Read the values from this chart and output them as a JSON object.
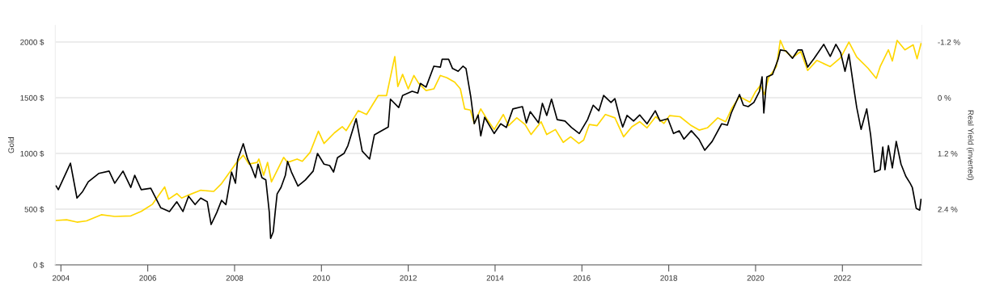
{
  "chart_data": {
    "type": "line",
    "ylabel": "Gold",
    "y2label": "Real Yield (inverted)",
    "xlim": [
      2003.87,
      2023.83
    ],
    "xticks": [
      2004,
      2006,
      2008,
      2010,
      2012,
      2014,
      2016,
      2018,
      2020,
      2022
    ],
    "ylim": [
      0,
      2150
    ],
    "yticks": [
      {
        "value": 0,
        "label": "0 $"
      },
      {
        "value": 500,
        "label": "500 $"
      },
      {
        "value": 1000,
        "label": "1000 $"
      },
      {
        "value": 1500,
        "label": "1500 $"
      },
      {
        "value": 2000,
        "label": "2000 $"
      }
    ],
    "y2lim": [
      3.6,
      -1.56
    ],
    "y2ticks": [
      {
        "value": -1.2,
        "label": "-1.2 %"
      },
      {
        "value": 0,
        "label": "0 %"
      },
      {
        "value": 1.2,
        "label": "1.2 %"
      },
      {
        "value": 2.4,
        "label": "2.4 %"
      }
    ],
    "grid": "y",
    "line_style": "solid",
    "marker": "none",
    "series": [
      {
        "color": "#ffd700",
        "x": [
          2003.89,
          2004.13,
          2004.37,
          2004.59,
          2004.93,
          2005.24,
          2005.61,
          2005.85,
          2006.11,
          2006.39,
          2006.48,
          2006.67,
          2006.78,
          2006.96,
          2007.22,
          2007.52,
          2007.7,
          2007.89,
          2008.02,
          2008.2,
          2008.33,
          2008.52,
          2008.56,
          2008.67,
          2008.76,
          2008.85,
          2009.13,
          2009.22,
          2009.44,
          2009.56,
          2009.74,
          2009.93,
          2010.06,
          2010.3,
          2010.48,
          2010.57,
          2010.85,
          2011.04,
          2011.31,
          2011.5,
          2011.69,
          2011.76,
          2011.87,
          2012.0,
          2012.13,
          2012.24,
          2012.41,
          2012.59,
          2012.74,
          2012.89,
          2013.07,
          2013.2,
          2013.3,
          2013.43,
          2013.52,
          2013.67,
          2013.81,
          2013.98,
          2014.19,
          2014.31,
          2014.5,
          2014.69,
          2014.83,
          2015.06,
          2015.19,
          2015.39,
          2015.57,
          2015.74,
          2015.93,
          2016.04,
          2016.17,
          2016.35,
          2016.54,
          2016.76,
          2016.96,
          2017.15,
          2017.33,
          2017.5,
          2017.7,
          2017.89,
          2018.02,
          2018.26,
          2018.52,
          2018.7,
          2018.89,
          2019.13,
          2019.31,
          2019.46,
          2019.63,
          2019.87,
          2020.0,
          2020.11,
          2020.2,
          2020.3,
          2020.48,
          2020.57,
          2020.67,
          2020.85,
          2021.04,
          2021.2,
          2021.41,
          2021.72,
          2021.96,
          2022.15,
          2022.33,
          2022.59,
          2022.78,
          2022.87,
          2023.06,
          2023.15,
          2023.26,
          2023.44,
          2023.63,
          2023.72,
          2023.81
        ],
        "values": [
          399,
          405,
          384,
          395,
          450,
          435,
          440,
          480,
          545,
          700,
          590,
          640,
          600,
          630,
          670,
          660,
          730,
          833,
          905,
          985,
          905,
          920,
          950,
          805,
          920,
          745,
          965,
          920,
          950,
          930,
          1010,
          1200,
          1090,
          1185,
          1240,
          1205,
          1385,
          1350,
          1520,
          1520,
          1870,
          1600,
          1710,
          1580,
          1700,
          1630,
          1565,
          1580,
          1700,
          1680,
          1640,
          1580,
          1400,
          1390,
          1270,
          1400,
          1310,
          1215,
          1350,
          1250,
          1320,
          1260,
          1170,
          1285,
          1170,
          1215,
          1100,
          1150,
          1090,
          1120,
          1260,
          1250,
          1350,
          1320,
          1150,
          1240,
          1285,
          1230,
          1330,
          1270,
          1340,
          1330,
          1250,
          1210,
          1230,
          1320,
          1285,
          1410,
          1510,
          1460,
          1555,
          1610,
          1530,
          1680,
          1780,
          2015,
          1925,
          1860,
          1915,
          1745,
          1835,
          1780,
          1860,
          2000,
          1865,
          1765,
          1675,
          1780,
          1930,
          1830,
          2015,
          1930,
          1975,
          1850,
          1985
        ]
      },
      {
        "color": "#000000",
        "axis": "y2",
        "x": [
          2003.89,
          2003.94,
          2004.22,
          2004.37,
          2004.5,
          2004.63,
          2004.87,
          2005.11,
          2005.24,
          2005.43,
          2005.61,
          2005.7,
          2005.85,
          2006.07,
          2006.3,
          2006.5,
          2006.67,
          2006.81,
          2006.94,
          2007.09,
          2007.22,
          2007.37,
          2007.46,
          2007.59,
          2007.7,
          2007.8,
          2007.93,
          2008.02,
          2008.07,
          2008.2,
          2008.3,
          2008.39,
          2008.48,
          2008.54,
          2008.63,
          2008.72,
          2008.8,
          2008.83,
          2008.89,
          2008.94,
          2008.98,
          2009.07,
          2009.17,
          2009.22,
          2009.31,
          2009.46,
          2009.63,
          2009.81,
          2009.91,
          2010.06,
          2010.19,
          2010.28,
          2010.37,
          2010.52,
          2010.61,
          2010.8,
          2010.94,
          2011.11,
          2011.22,
          2011.35,
          2011.54,
          2011.59,
          2011.78,
          2011.87,
          2012.09,
          2012.22,
          2012.28,
          2012.41,
          2012.59,
          2012.74,
          2012.78,
          2012.93,
          2013.02,
          2013.15,
          2013.26,
          2013.33,
          2013.44,
          2013.52,
          2013.61,
          2013.67,
          2013.76,
          2013.98,
          2014.13,
          2014.26,
          2014.41,
          2014.63,
          2014.72,
          2014.81,
          2015.0,
          2015.09,
          2015.19,
          2015.3,
          2015.43,
          2015.61,
          2015.76,
          2015.94,
          2016.13,
          2016.26,
          2016.39,
          2016.5,
          2016.67,
          2016.76,
          2016.87,
          2016.94,
          2017.04,
          2017.19,
          2017.33,
          2017.5,
          2017.69,
          2017.8,
          2017.98,
          2018.11,
          2018.24,
          2018.35,
          2018.52,
          2018.7,
          2018.83,
          2019.0,
          2019.22,
          2019.35,
          2019.44,
          2019.63,
          2019.72,
          2019.83,
          2019.96,
          2020.09,
          2020.15,
          2020.19,
          2020.26,
          2020.39,
          2020.52,
          2020.57,
          2020.7,
          2020.85,
          2020.98,
          2021.07,
          2021.2,
          2021.35,
          2021.57,
          2021.72,
          2021.85,
          2021.96,
          2022.06,
          2022.15,
          2022.28,
          2022.33,
          2022.43,
          2022.56,
          2022.65,
          2022.74,
          2022.87,
          2022.93,
          2022.98,
          2023.06,
          2023.15,
          2023.24,
          2023.35,
          2023.46,
          2023.56,
          2023.61,
          2023.7,
          2023.78,
          2023.81
        ],
        "values": [
          1.9,
          1.98,
          1.41,
          2.16,
          2.02,
          1.81,
          1.63,
          1.58,
          1.84,
          1.58,
          1.93,
          1.67,
          1.98,
          1.95,
          2.37,
          2.45,
          2.24,
          2.45,
          2.12,
          2.3,
          2.16,
          2.24,
          2.73,
          2.47,
          2.21,
          2.3,
          1.6,
          1.84,
          1.34,
          0.99,
          1.32,
          1.5,
          1.72,
          1.43,
          1.72,
          1.77,
          2.47,
          3.03,
          2.89,
          2.42,
          2.07,
          1.93,
          1.67,
          1.37,
          1.6,
          1.9,
          1.77,
          1.58,
          1.2,
          1.43,
          1.46,
          1.6,
          1.29,
          1.2,
          1.03,
          0.45,
          1.15,
          1.32,
          0.8,
          0.73,
          0.63,
          0.03,
          0.21,
          -0.05,
          -0.14,
          -0.1,
          -0.31,
          -0.23,
          -0.68,
          -0.66,
          -0.83,
          -0.83,
          -0.63,
          -0.57,
          -0.68,
          -0.63,
          -0.02,
          0.56,
          0.37,
          0.82,
          0.42,
          0.77,
          0.56,
          0.64,
          0.24,
          0.19,
          0.54,
          0.3,
          0.54,
          0.12,
          0.38,
          0.03,
          0.47,
          0.5,
          0.64,
          0.77,
          0.47,
          0.16,
          0.28,
          -0.05,
          0.1,
          0.02,
          0.42,
          0.63,
          0.38,
          0.5,
          0.37,
          0.56,
          0.28,
          0.5,
          0.45,
          0.77,
          0.71,
          0.89,
          0.71,
          0.9,
          1.13,
          0.94,
          0.56,
          0.59,
          0.33,
          -0.07,
          0.16,
          0.19,
          0.1,
          -0.14,
          -0.45,
          0.33,
          -0.45,
          -0.5,
          -0.83,
          -1.03,
          -1.01,
          -0.85,
          -1.03,
          -1.03,
          -0.66,
          -0.85,
          -1.15,
          -0.89,
          -1.15,
          -0.97,
          -0.57,
          -0.94,
          -0.1,
          0.21,
          0.68,
          0.24,
          0.8,
          1.6,
          1.55,
          1.06,
          1.55,
          1.03,
          1.51,
          0.94,
          1.43,
          1.69,
          1.84,
          1.93,
          2.38,
          2.42,
          2.19
        ]
      }
    ]
  }
}
